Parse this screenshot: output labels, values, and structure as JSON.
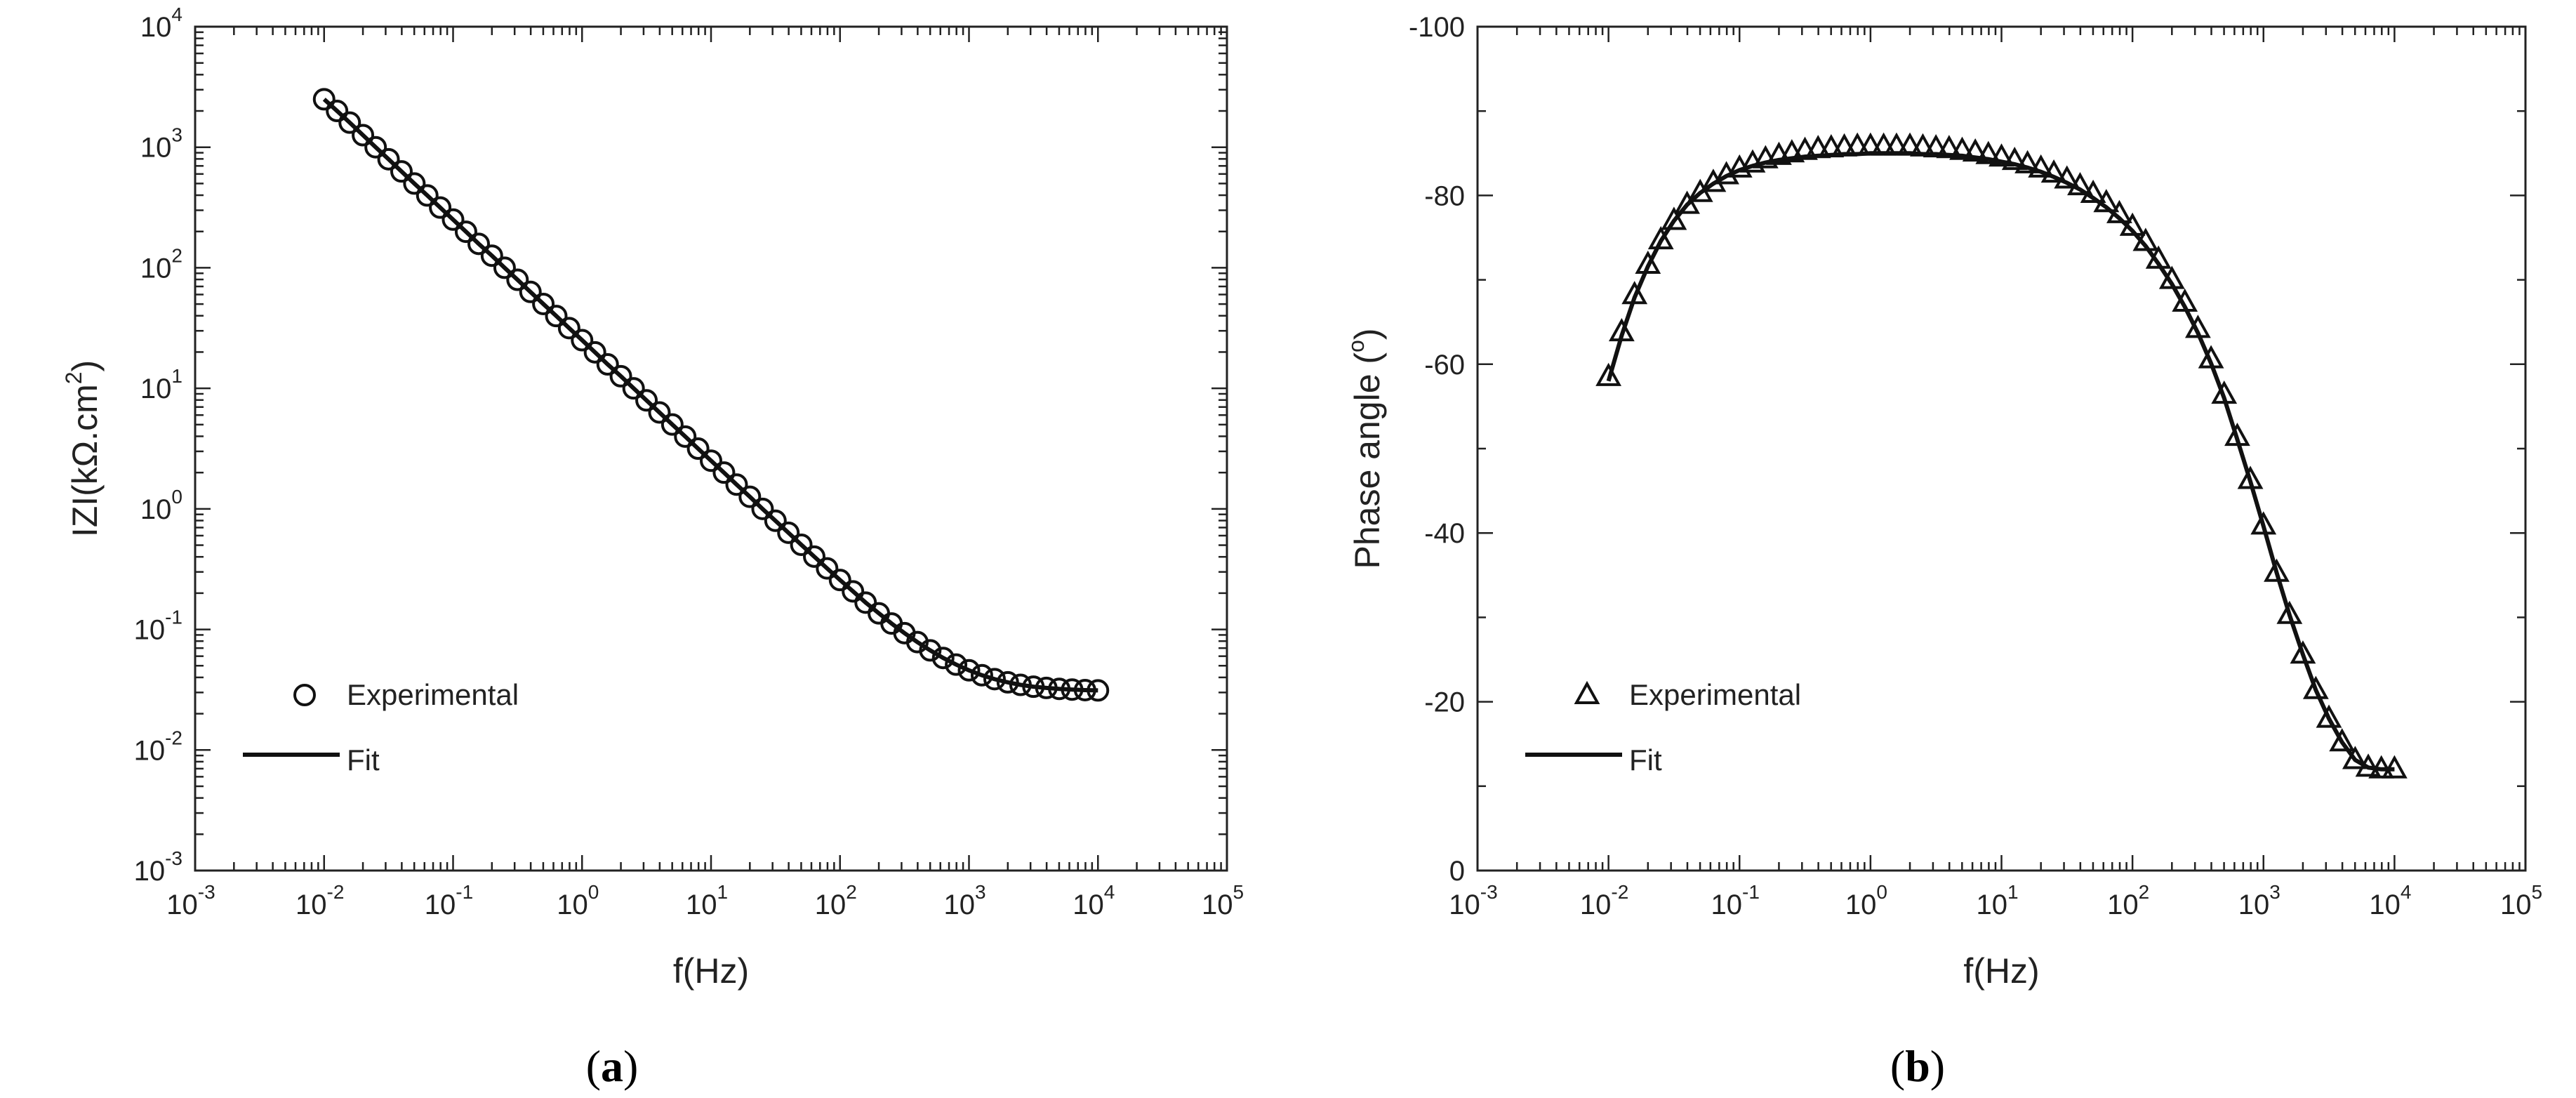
{
  "chart_data": [
    {
      "type": "line",
      "panel_label": "a",
      "xlabel": "f(Hz)",
      "ylabel": {
        "base": "IZI(kΩ.cm",
        "sup": "2",
        "tail": ")"
      },
      "x_scale": "log",
      "y_scale": "log",
      "xlim": [
        0.001,
        100000
      ],
      "ylim": [
        0.001,
        10000
      ],
      "x_ticks": [
        {
          "base": "10",
          "exp": "-3"
        },
        {
          "base": "10",
          "exp": "-2"
        },
        {
          "base": "10",
          "exp": "-1"
        },
        {
          "base": "10",
          "exp": "0"
        },
        {
          "base": "10",
          "exp": "1"
        },
        {
          "base": "10",
          "exp": "2"
        },
        {
          "base": "10",
          "exp": "3"
        },
        {
          "base": "10",
          "exp": "4"
        },
        {
          "base": "10",
          "exp": "5"
        }
      ],
      "y_ticks": [
        {
          "base": "10",
          "exp": "-3"
        },
        {
          "base": "10",
          "exp": "-2"
        },
        {
          "base": "10",
          "exp": "-1"
        },
        {
          "base": "10",
          "exp": "0"
        },
        {
          "base": "10",
          "exp": "1"
        },
        {
          "base": "10",
          "exp": "2"
        },
        {
          "base": "10",
          "exp": "3"
        },
        {
          "base": "10",
          "exp": "4"
        }
      ],
      "legend": {
        "position": "bottom-left",
        "entries": [
          "Experimental",
          "Fit"
        ]
      },
      "series": [
        {
          "name": "Experimental",
          "marker": "circle",
          "x": [
            0.01,
            0.0126,
            0.0158,
            0.02,
            0.0251,
            0.0316,
            0.0398,
            0.0501,
            0.0631,
            0.0794,
            0.1,
            0.126,
            0.158,
            0.2,
            0.251,
            0.316,
            0.398,
            0.501,
            0.631,
            0.794,
            1,
            1.26,
            1.58,
            2,
            2.51,
            3.16,
            3.98,
            5.01,
            6.31,
            7.94,
            10,
            12.6,
            15.8,
            20,
            25.1,
            31.6,
            39.8,
            50.1,
            63.1,
            79.4,
            100,
            126,
            158,
            200,
            251,
            316,
            398,
            501,
            631,
            794,
            1000,
            1260,
            1580,
            2000,
            2510,
            3160,
            3980,
            5010,
            6310,
            7940,
            10000
          ],
          "y": [
            2500,
            2000,
            1600,
            1260,
            1000,
            795,
            630,
            500,
            398,
            316,
            251,
            199,
            158,
            126,
            100,
            79.5,
            63.1,
            50.1,
            39.8,
            31.6,
            25.1,
            19.9,
            15.8,
            12.6,
            10.0,
            7.95,
            6.31,
            5.01,
            3.98,
            3.16,
            2.51,
            2.0,
            1.59,
            1.26,
            1.0,
            0.797,
            0.634,
            0.504,
            0.402,
            0.321,
            0.257,
            0.207,
            0.167,
            0.136,
            0.112,
            0.0932,
            0.0785,
            0.067,
            0.058,
            0.0511,
            0.0458,
            0.0417,
            0.0387,
            0.0364,
            0.0347,
            0.0335,
            0.0327,
            0.0321,
            0.0317,
            0.0314,
            0.0312
          ]
        },
        {
          "name": "Fit",
          "marker": "none",
          "x": [
            0.01,
            0.0126,
            0.0158,
            0.02,
            0.0251,
            0.0316,
            0.0398,
            0.0501,
            0.0631,
            0.0794,
            0.1,
            0.126,
            0.158,
            0.2,
            0.251,
            0.316,
            0.398,
            0.501,
            0.631,
            0.794,
            1,
            1.26,
            1.58,
            2,
            2.51,
            3.16,
            3.98,
            5.01,
            6.31,
            7.94,
            10,
            12.6,
            15.8,
            20,
            25.1,
            31.6,
            39.8,
            50.1,
            63.1,
            79.4,
            100,
            126,
            158,
            200,
            251,
            316,
            398,
            501,
            631,
            794,
            1000,
            1260,
            1580,
            2000,
            2510,
            3160,
            3980,
            5010,
            6310,
            7940,
            10000
          ],
          "y": [
            2500,
            2000,
            1600,
            1260,
            1000,
            795,
            630,
            500,
            398,
            316,
            251,
            199,
            158,
            126,
            100,
            79.5,
            63.1,
            50.1,
            39.8,
            31.6,
            25.1,
            19.9,
            15.8,
            12.6,
            10.0,
            7.95,
            6.31,
            5.01,
            3.98,
            3.16,
            2.51,
            2.0,
            1.59,
            1.26,
            1.0,
            0.797,
            0.634,
            0.504,
            0.402,
            0.321,
            0.257,
            0.207,
            0.167,
            0.136,
            0.112,
            0.0932,
            0.0785,
            0.067,
            0.058,
            0.0511,
            0.0458,
            0.0417,
            0.0387,
            0.0364,
            0.0347,
            0.0335,
            0.0327,
            0.0321,
            0.0317,
            0.0314,
            0.0312
          ]
        }
      ]
    },
    {
      "type": "line",
      "panel_label": "b",
      "xlabel": "f(Hz)",
      "ylabel": {
        "base": "Phase angle (",
        "sup": "o",
        "tail": ")"
      },
      "x_scale": "log",
      "y_scale": "linear",
      "y_inverted": true,
      "xlim": [
        0.001,
        100000
      ],
      "ylim": [
        0,
        -100
      ],
      "x_ticks": [
        {
          "base": "10",
          "exp": "-3"
        },
        {
          "base": "10",
          "exp": "-2"
        },
        {
          "base": "10",
          "exp": "-1"
        },
        {
          "base": "10",
          "exp": "0"
        },
        {
          "base": "10",
          "exp": "1"
        },
        {
          "base": "10",
          "exp": "2"
        },
        {
          "base": "10",
          "exp": "3"
        },
        {
          "base": "10",
          "exp": "4"
        },
        {
          "base": "10",
          "exp": "5"
        }
      ],
      "y_ticks": [
        "0",
        "-20",
        "-40",
        "-60",
        "-80",
        "-100"
      ],
      "y_tick_values": [
        0,
        -20,
        -40,
        -60,
        -80,
        -100
      ],
      "legend": {
        "position": "bottom-left",
        "entries": [
          "Experimental",
          "Fit"
        ]
      },
      "series": [
        {
          "name": "Experimental",
          "marker": "triangle",
          "x": [
            0.01,
            0.0126,
            0.0158,
            0.02,
            0.0251,
            0.0316,
            0.0398,
            0.0501,
            0.0631,
            0.0794,
            0.1,
            0.126,
            0.158,
            0.2,
            0.251,
            0.316,
            0.398,
            0.501,
            0.631,
            0.794,
            1,
            1.26,
            1.58,
            2,
            2.51,
            3.16,
            3.98,
            5.01,
            6.31,
            7.94,
            10,
            12.6,
            15.8,
            20,
            25.1,
            31.6,
            39.8,
            50.1,
            63.1,
            79.4,
            100,
            126,
            158,
            200,
            251,
            316,
            398,
            501,
            631,
            794,
            1000,
            1260,
            1580,
            2000,
            2510,
            3160,
            3980,
            5010,
            6310,
            7940,
            10000
          ],
          "y": [
            -58.5,
            -63.8,
            -68.2,
            -71.8,
            -74.7,
            -77.0,
            -78.9,
            -80.3,
            -81.5,
            -82.4,
            -83.2,
            -83.8,
            -84.3,
            -84.7,
            -85.0,
            -85.3,
            -85.5,
            -85.6,
            -85.7,
            -85.8,
            -85.8,
            -85.8,
            -85.8,
            -85.8,
            -85.7,
            -85.6,
            -85.5,
            -85.3,
            -85.1,
            -84.8,
            -84.5,
            -84.1,
            -83.7,
            -83.2,
            -82.6,
            -81.9,
            -81.1,
            -80.2,
            -79.1,
            -77.8,
            -76.3,
            -74.5,
            -72.4,
            -70.0,
            -67.3,
            -64.2,
            -60.6,
            -56.4,
            -51.4,
            -46.3,
            -40.9,
            -35.3,
            -30.3,
            -25.6,
            -21.4,
            -18.0,
            -15.2,
            -13.1,
            -12.2,
            -12.0,
            -12.0
          ]
        },
        {
          "name": "Fit",
          "marker": "none",
          "x": [
            0.01,
            0.0126,
            0.0158,
            0.02,
            0.0251,
            0.0316,
            0.0398,
            0.0501,
            0.0631,
            0.0794,
            0.1,
            0.126,
            0.158,
            0.2,
            0.251,
            0.316,
            0.398,
            0.501,
            0.631,
            0.794,
            1,
            1.26,
            1.58,
            2,
            2.51,
            3.16,
            3.98,
            5.01,
            6.31,
            7.94,
            10,
            12.6,
            15.8,
            20,
            25.1,
            31.6,
            39.8,
            50.1,
            63.1,
            79.4,
            100,
            126,
            158,
            200,
            251,
            316,
            398,
            501,
            631,
            794,
            1000,
            1260,
            1580,
            2000,
            2510,
            3160,
            3980,
            5010,
            6310,
            7940,
            10000
          ],
          "y": [
            -58.0,
            -63.4,
            -67.9,
            -71.6,
            -74.6,
            -77.0,
            -78.9,
            -80.3,
            -81.4,
            -82.3,
            -83.0,
            -83.5,
            -83.9,
            -84.2,
            -84.4,
            -84.6,
            -84.7,
            -84.8,
            -84.9,
            -84.9,
            -85.0,
            -85.0,
            -85.0,
            -85.0,
            -84.9,
            -84.9,
            -84.8,
            -84.7,
            -84.5,
            -84.3,
            -84.0,
            -83.7,
            -83.3,
            -82.8,
            -82.2,
            -81.5,
            -80.7,
            -79.7,
            -78.6,
            -77.3,
            -75.8,
            -74.0,
            -71.9,
            -69.5,
            -66.8,
            -63.7,
            -60.1,
            -56.0,
            -51.1,
            -46.1,
            -40.8,
            -35.3,
            -30.3,
            -25.6,
            -21.4,
            -18.0,
            -15.2,
            -13.1,
            -12.2,
            -12.0,
            -12.0
          ]
        }
      ]
    }
  ]
}
